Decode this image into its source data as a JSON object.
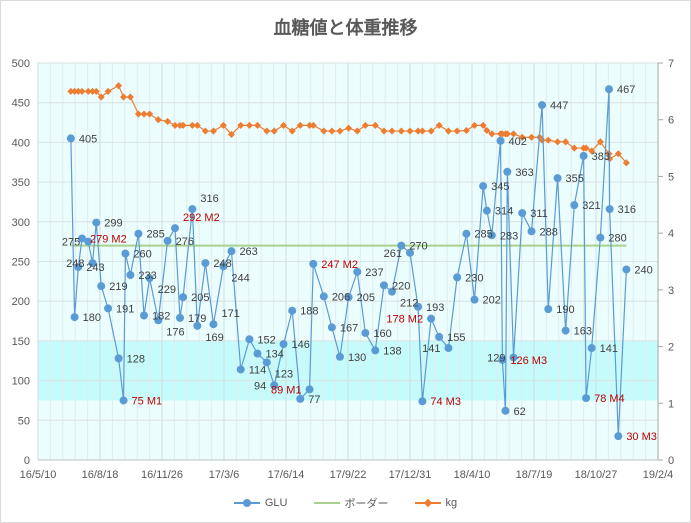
{
  "chart_data": {
    "type": "line",
    "title": "血糖値と体重推移",
    "x_unit": "days since 16/5/10",
    "x_range": [
      0,
      1000
    ],
    "x_tick_labels": [
      "16/5/10",
      "16/8/18",
      "16/11/26",
      "17/3/6",
      "17/6/14",
      "17/9/22",
      "17/12/31",
      "18/4/10",
      "18/7/19",
      "18/10/27",
      "19/2/4"
    ],
    "y_left": {
      "range": [
        0,
        500
      ],
      "ticks": [
        "0",
        "50",
        "100",
        "150",
        "200",
        "250",
        "300",
        "350",
        "400",
        "450",
        "500"
      ]
    },
    "y_right": {
      "range": [
        0,
        7
      ],
      "ticks": [
        "0",
        "1",
        "2",
        "3",
        "4",
        "5",
        "6",
        "7"
      ]
    },
    "target_band": [
      75,
      150
    ],
    "colors": {
      "glu": "#5b9bd5",
      "border": "#a9d18e",
      "kg": "#ed7d31",
      "band": "#c6fbfb",
      "plot_bg": "#ebfdfd",
      "label": "#404040",
      "label_red": "#c00000"
    },
    "legend": {
      "placement": "bottom",
      "items": [
        "GLU",
        "ボーダー",
        "kg"
      ]
    },
    "series": [
      {
        "name": "GLU",
        "axis": "left",
        "points": [
          {
            "d": 53,
            "v": 405,
            "label": "405"
          },
          {
            "d": 59,
            "v": 180,
            "label": "180"
          },
          {
            "d": 65,
            "v": 243,
            "label": "243"
          },
          {
            "d": 71,
            "v": 279,
            "label": "279 M2",
            "red": true
          },
          {
            "d": 81,
            "v": 275,
            "label": "275"
          },
          {
            "d": 88,
            "v": 248,
            "label": "248"
          },
          {
            "d": 94,
            "v": 299,
            "label": "299"
          },
          {
            "d": 102,
            "v": 219,
            "label": "219"
          },
          {
            "d": 113,
            "v": 191,
            "label": "191"
          },
          {
            "d": 130,
            "v": 128,
            "label": "128"
          },
          {
            "d": 138,
            "v": 75,
            "label": "75 M1",
            "red": true
          },
          {
            "d": 141,
            "v": 260,
            "label": "260"
          },
          {
            "d": 149,
            "v": 233,
            "label": "233"
          },
          {
            "d": 162,
            "v": 285,
            "label": "285"
          },
          {
            "d": 171,
            "v": 182,
            "label": "182"
          },
          {
            "d": 180,
            "v": 229,
            "label": "229"
          },
          {
            "d": 194,
            "v": 176,
            "label": "176"
          },
          {
            "d": 209,
            "v": 276,
            "label": "276"
          },
          {
            "d": 221,
            "v": 292,
            "label": "292 M2",
            "red": true
          },
          {
            "d": 229,
            "v": 179,
            "label": "179"
          },
          {
            "d": 234,
            "v": 205,
            "label": "205"
          },
          {
            "d": 249,
            "v": 316,
            "label": "316"
          },
          {
            "d": 257,
            "v": 169,
            "label": "169"
          },
          {
            "d": 270,
            "v": 248,
            "label": "248"
          },
          {
            "d": 283,
            "v": 171,
            "label": "171"
          },
          {
            "d": 299,
            "v": 244,
            "label": "244"
          },
          {
            "d": 312,
            "v": 263,
            "label": "263"
          },
          {
            "d": 327,
            "v": 114,
            "label": "114"
          },
          {
            "d": 341,
            "v": 152,
            "label": "152"
          },
          {
            "d": 354,
            "v": 134,
            "label": "134"
          },
          {
            "d": 369,
            "v": 123,
            "label": "123"
          },
          {
            "d": 381,
            "v": 94,
            "label": "94"
          },
          {
            "d": 396,
            "v": 146,
            "label": "146"
          },
          {
            "d": 410,
            "v": 188,
            "label": "188"
          },
          {
            "d": 423,
            "v": 77,
            "label": "77"
          },
          {
            "d": 438,
            "v": 89,
            "label": "89 M1",
            "red": true
          },
          {
            "d": 444,
            "v": 247,
            "label": "247 M2",
            "red": true
          },
          {
            "d": 461,
            "v": 206,
            "label": "206"
          },
          {
            "d": 474,
            "v": 167,
            "label": "167"
          },
          {
            "d": 487,
            "v": 130,
            "label": "130"
          },
          {
            "d": 501,
            "v": 205,
            "label": "205"
          },
          {
            "d": 515,
            "v": 237,
            "label": "237"
          },
          {
            "d": 528,
            "v": 160,
            "label": "160"
          },
          {
            "d": 544,
            "v": 138,
            "label": "138"
          },
          {
            "d": 558,
            "v": 220,
            "label": "220"
          },
          {
            "d": 571,
            "v": 212,
            "label": "212"
          },
          {
            "d": 586,
            "v": 270,
            "label": "270"
          },
          {
            "d": 600,
            "v": 261,
            "label": "261"
          },
          {
            "d": 613,
            "v": 193,
            "label": "193"
          },
          {
            "d": 620,
            "v": 74,
            "label": "74 M3",
            "red": true
          },
          {
            "d": 634,
            "v": 178,
            "label": "178 M2",
            "red": true
          },
          {
            "d": 647,
            "v": 155,
            "label": "155"
          },
          {
            "d": 662,
            "v": 141,
            "label": "141"
          },
          {
            "d": 676,
            "v": 230,
            "label": "230"
          },
          {
            "d": 691,
            "v": 285,
            "label": "285"
          },
          {
            "d": 704,
            "v": 202,
            "label": "202"
          },
          {
            "d": 718,
            "v": 345,
            "label": "345"
          },
          {
            "d": 724,
            "v": 314,
            "label": "314"
          },
          {
            "d": 732,
            "v": 283,
            "label": "283"
          },
          {
            "d": 746,
            "v": 402,
            "label": "402"
          },
          {
            "d": 749,
            "v": 126,
            "label": "126 M3",
            "red": true
          },
          {
            "d": 754,
            "v": 62,
            "label": "62"
          },
          {
            "d": 757,
            "v": 363,
            "label": "363"
          },
          {
            "d": 767,
            "v": 129,
            "label": "129"
          },
          {
            "d": 781,
            "v": 311,
            "label": "311"
          },
          {
            "d": 796,
            "v": 288,
            "label": "288"
          },
          {
            "d": 813,
            "v": 447,
            "label": "447"
          },
          {
            "d": 823,
            "v": 190,
            "label": "190"
          },
          {
            "d": 838,
            "v": 355,
            "label": "355"
          },
          {
            "d": 851,
            "v": 163,
            "label": "163"
          },
          {
            "d": 865,
            "v": 321,
            "label": "321"
          },
          {
            "d": 880,
            "v": 383,
            "label": "383"
          },
          {
            "d": 884,
            "v": 78,
            "label": "78 M4",
            "red": true
          },
          {
            "d": 893,
            "v": 141,
            "label": "141"
          },
          {
            "d": 907,
            "v": 280,
            "label": "280"
          },
          {
            "d": 921,
            "v": 467,
            "label": "467"
          },
          {
            "d": 922,
            "v": 316,
            "label": "316"
          },
          {
            "d": 936,
            "v": 30,
            "label": "30 M3",
            "red": true
          },
          {
            "d": 949,
            "v": 240,
            "label": "240"
          }
        ]
      },
      {
        "name": "ボーダー",
        "axis": "left",
        "points": [
          {
            "d": 53,
            "v": 270
          },
          {
            "d": 949,
            "v": 270
          }
        ]
      },
      {
        "name": "kg",
        "axis": "right",
        "points": [
          {
            "d": 53,
            "v": 6.5
          },
          {
            "d": 59,
            "v": 6.5
          },
          {
            "d": 65,
            "v": 6.5
          },
          {
            "d": 71,
            "v": 6.5
          },
          {
            "d": 81,
            "v": 6.5
          },
          {
            "d": 88,
            "v": 6.5
          },
          {
            "d": 94,
            "v": 6.5
          },
          {
            "d": 102,
            "v": 6.4
          },
          {
            "d": 113,
            "v": 6.5
          },
          {
            "d": 130,
            "v": 6.6
          },
          {
            "d": 138,
            "v": 6.4
          },
          {
            "d": 149,
            "v": 6.4
          },
          {
            "d": 162,
            "v": 6.1
          },
          {
            "d": 171,
            "v": 6.1
          },
          {
            "d": 180,
            "v": 6.1
          },
          {
            "d": 194,
            "v": 6.0
          },
          {
            "d": 209,
            "v": 5.97
          },
          {
            "d": 221,
            "v": 5.9
          },
          {
            "d": 229,
            "v": 5.9
          },
          {
            "d": 234,
            "v": 5.9
          },
          {
            "d": 249,
            "v": 5.9
          },
          {
            "d": 257,
            "v": 5.9
          },
          {
            "d": 270,
            "v": 5.8
          },
          {
            "d": 283,
            "v": 5.8
          },
          {
            "d": 299,
            "v": 5.9
          },
          {
            "d": 312,
            "v": 5.74
          },
          {
            "d": 327,
            "v": 5.9
          },
          {
            "d": 341,
            "v": 5.9
          },
          {
            "d": 354,
            "v": 5.9
          },
          {
            "d": 369,
            "v": 5.8
          },
          {
            "d": 381,
            "v": 5.8
          },
          {
            "d": 396,
            "v": 5.9
          },
          {
            "d": 410,
            "v": 5.8
          },
          {
            "d": 423,
            "v": 5.9
          },
          {
            "d": 438,
            "v": 5.9
          },
          {
            "d": 444,
            "v": 5.9
          },
          {
            "d": 461,
            "v": 5.8
          },
          {
            "d": 474,
            "v": 5.8
          },
          {
            "d": 487,
            "v": 5.8
          },
          {
            "d": 501,
            "v": 5.85
          },
          {
            "d": 515,
            "v": 5.8
          },
          {
            "d": 528,
            "v": 5.9
          },
          {
            "d": 544,
            "v": 5.9
          },
          {
            "d": 558,
            "v": 5.8
          },
          {
            "d": 571,
            "v": 5.8
          },
          {
            "d": 586,
            "v": 5.8
          },
          {
            "d": 600,
            "v": 5.8
          },
          {
            "d": 613,
            "v": 5.8
          },
          {
            "d": 620,
            "v": 5.8
          },
          {
            "d": 634,
            "v": 5.8
          },
          {
            "d": 647,
            "v": 5.9
          },
          {
            "d": 662,
            "v": 5.8
          },
          {
            "d": 676,
            "v": 5.8
          },
          {
            "d": 691,
            "v": 5.81
          },
          {
            "d": 704,
            "v": 5.9
          },
          {
            "d": 718,
            "v": 5.9
          },
          {
            "d": 724,
            "v": 5.81
          },
          {
            "d": 732,
            "v": 5.75
          },
          {
            "d": 746,
            "v": 5.75
          },
          {
            "d": 749,
            "v": 5.75
          },
          {
            "d": 754,
            "v": 5.75
          },
          {
            "d": 757,
            "v": 5.75
          },
          {
            "d": 767,
            "v": 5.75
          },
          {
            "d": 781,
            "v": 5.69
          },
          {
            "d": 796,
            "v": 5.69
          },
          {
            "d": 809,
            "v": 5.69
          },
          {
            "d": 813,
            "v": 5.64
          },
          {
            "d": 823,
            "v": 5.64
          },
          {
            "d": 838,
            "v": 5.61
          },
          {
            "d": 851,
            "v": 5.61
          },
          {
            "d": 865,
            "v": 5.5
          },
          {
            "d": 880,
            "v": 5.5
          },
          {
            "d": 884,
            "v": 5.5
          },
          {
            "d": 893,
            "v": 5.45
          },
          {
            "d": 907,
            "v": 5.61
          },
          {
            "d": 921,
            "v": 5.4
          },
          {
            "d": 922,
            "v": 5.31
          },
          {
            "d": 936,
            "v": 5.4
          },
          {
            "d": 949,
            "v": 5.24
          }
        ]
      }
    ]
  }
}
